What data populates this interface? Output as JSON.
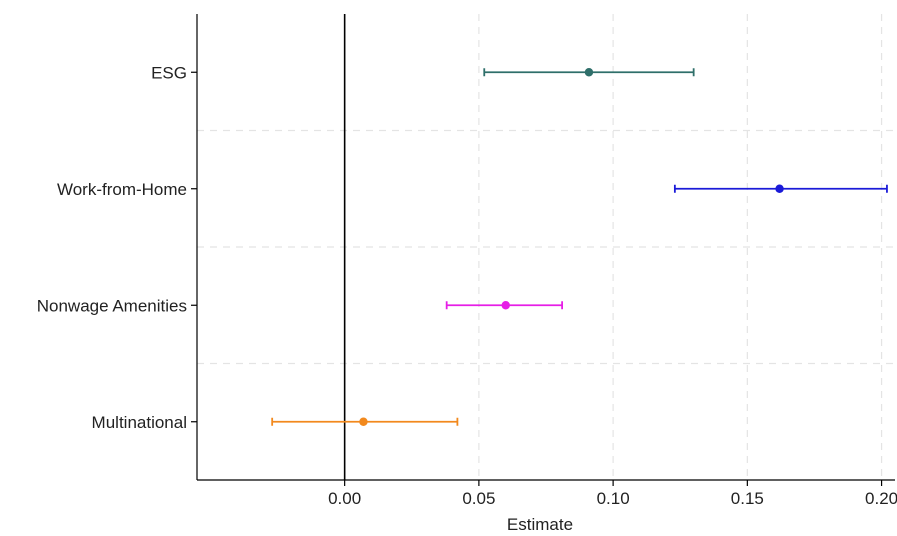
{
  "chart_data": {
    "type": "scatter",
    "subtype": "coefficient-plot",
    "orientation": "horizontal",
    "title": "",
    "xlabel": "Estimate",
    "ylabel": "",
    "xlim": [
      -0.055,
      0.205
    ],
    "xticks": [
      0.0,
      0.05,
      0.1,
      0.15,
      0.2
    ],
    "xtick_labels": [
      "0.00",
      "0.05",
      "0.10",
      "0.15",
      "0.20"
    ],
    "reference_line": 0,
    "grid": true,
    "categories": [
      "ESG",
      "Work-from-Home",
      "Nonwage Amenities",
      "Multinational"
    ],
    "series": [
      {
        "category": "ESG",
        "estimate": 0.091,
        "ci_low": 0.052,
        "ci_high": 0.13,
        "color": "#2f6f6a"
      },
      {
        "category": "Work-from-Home",
        "estimate": 0.162,
        "ci_low": 0.123,
        "ci_high": 0.202,
        "color": "#1a1ad8"
      },
      {
        "category": "Nonwage Amenities",
        "estimate": 0.06,
        "ci_low": 0.038,
        "ci_high": 0.081,
        "color": "#e61ee6"
      },
      {
        "category": "Multinational",
        "estimate": 0.007,
        "ci_low": -0.027,
        "ci_high": 0.042,
        "color": "#f2891d"
      }
    ]
  }
}
